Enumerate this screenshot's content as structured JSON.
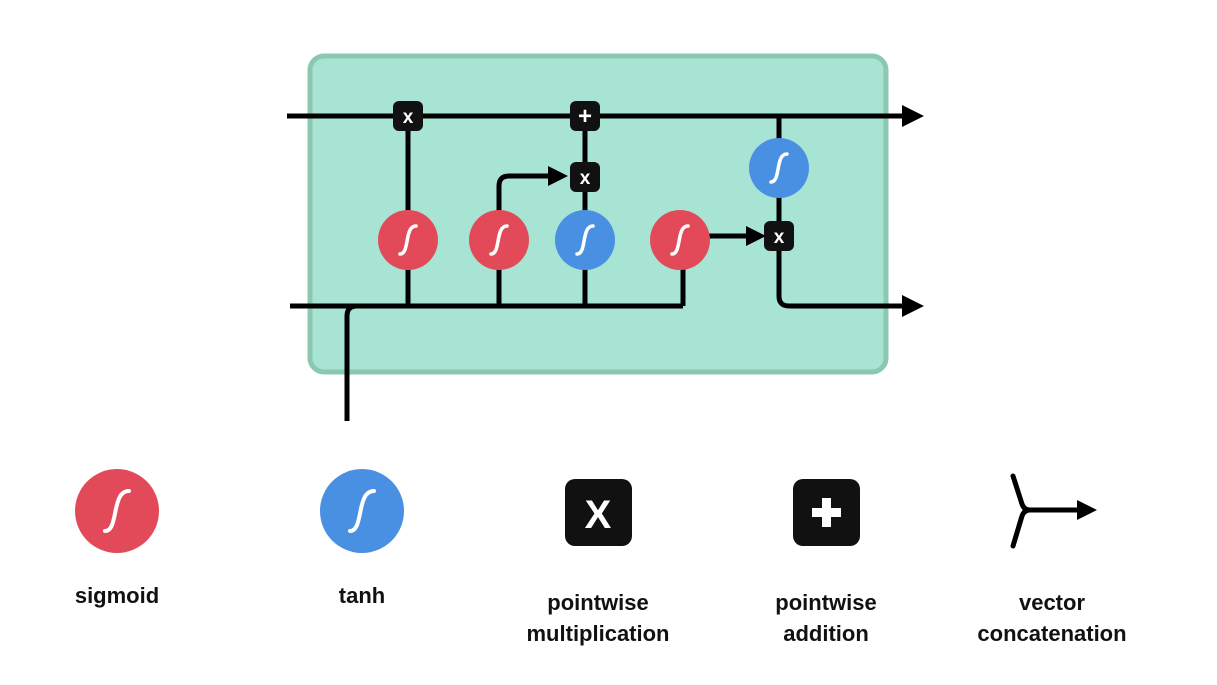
{
  "colors": {
    "cell_fill": "#a8e4d3",
    "cell_border": "#8cc7b2",
    "sigmoid": "#e24a5a",
    "tanh": "#4a90e2",
    "op_box": "#111111",
    "line": "#000000"
  },
  "diagram": {
    "ops": {
      "multiply_symbol": "x",
      "add_symbol": "+"
    }
  },
  "legend": {
    "items": [
      {
        "icon": "sigmoid-icon",
        "lines": [
          "sigmoid"
        ]
      },
      {
        "icon": "tanh-icon",
        "lines": [
          "tanh"
        ]
      },
      {
        "icon": "multiply-icon",
        "symbol": "X",
        "lines": [
          "pointwise",
          "multiplication"
        ]
      },
      {
        "icon": "add-icon",
        "symbol": "+",
        "lines": [
          "pointwise",
          "addition"
        ]
      },
      {
        "icon": "concatenation-icon",
        "lines": [
          "vector",
          "concatenation"
        ]
      }
    ]
  }
}
